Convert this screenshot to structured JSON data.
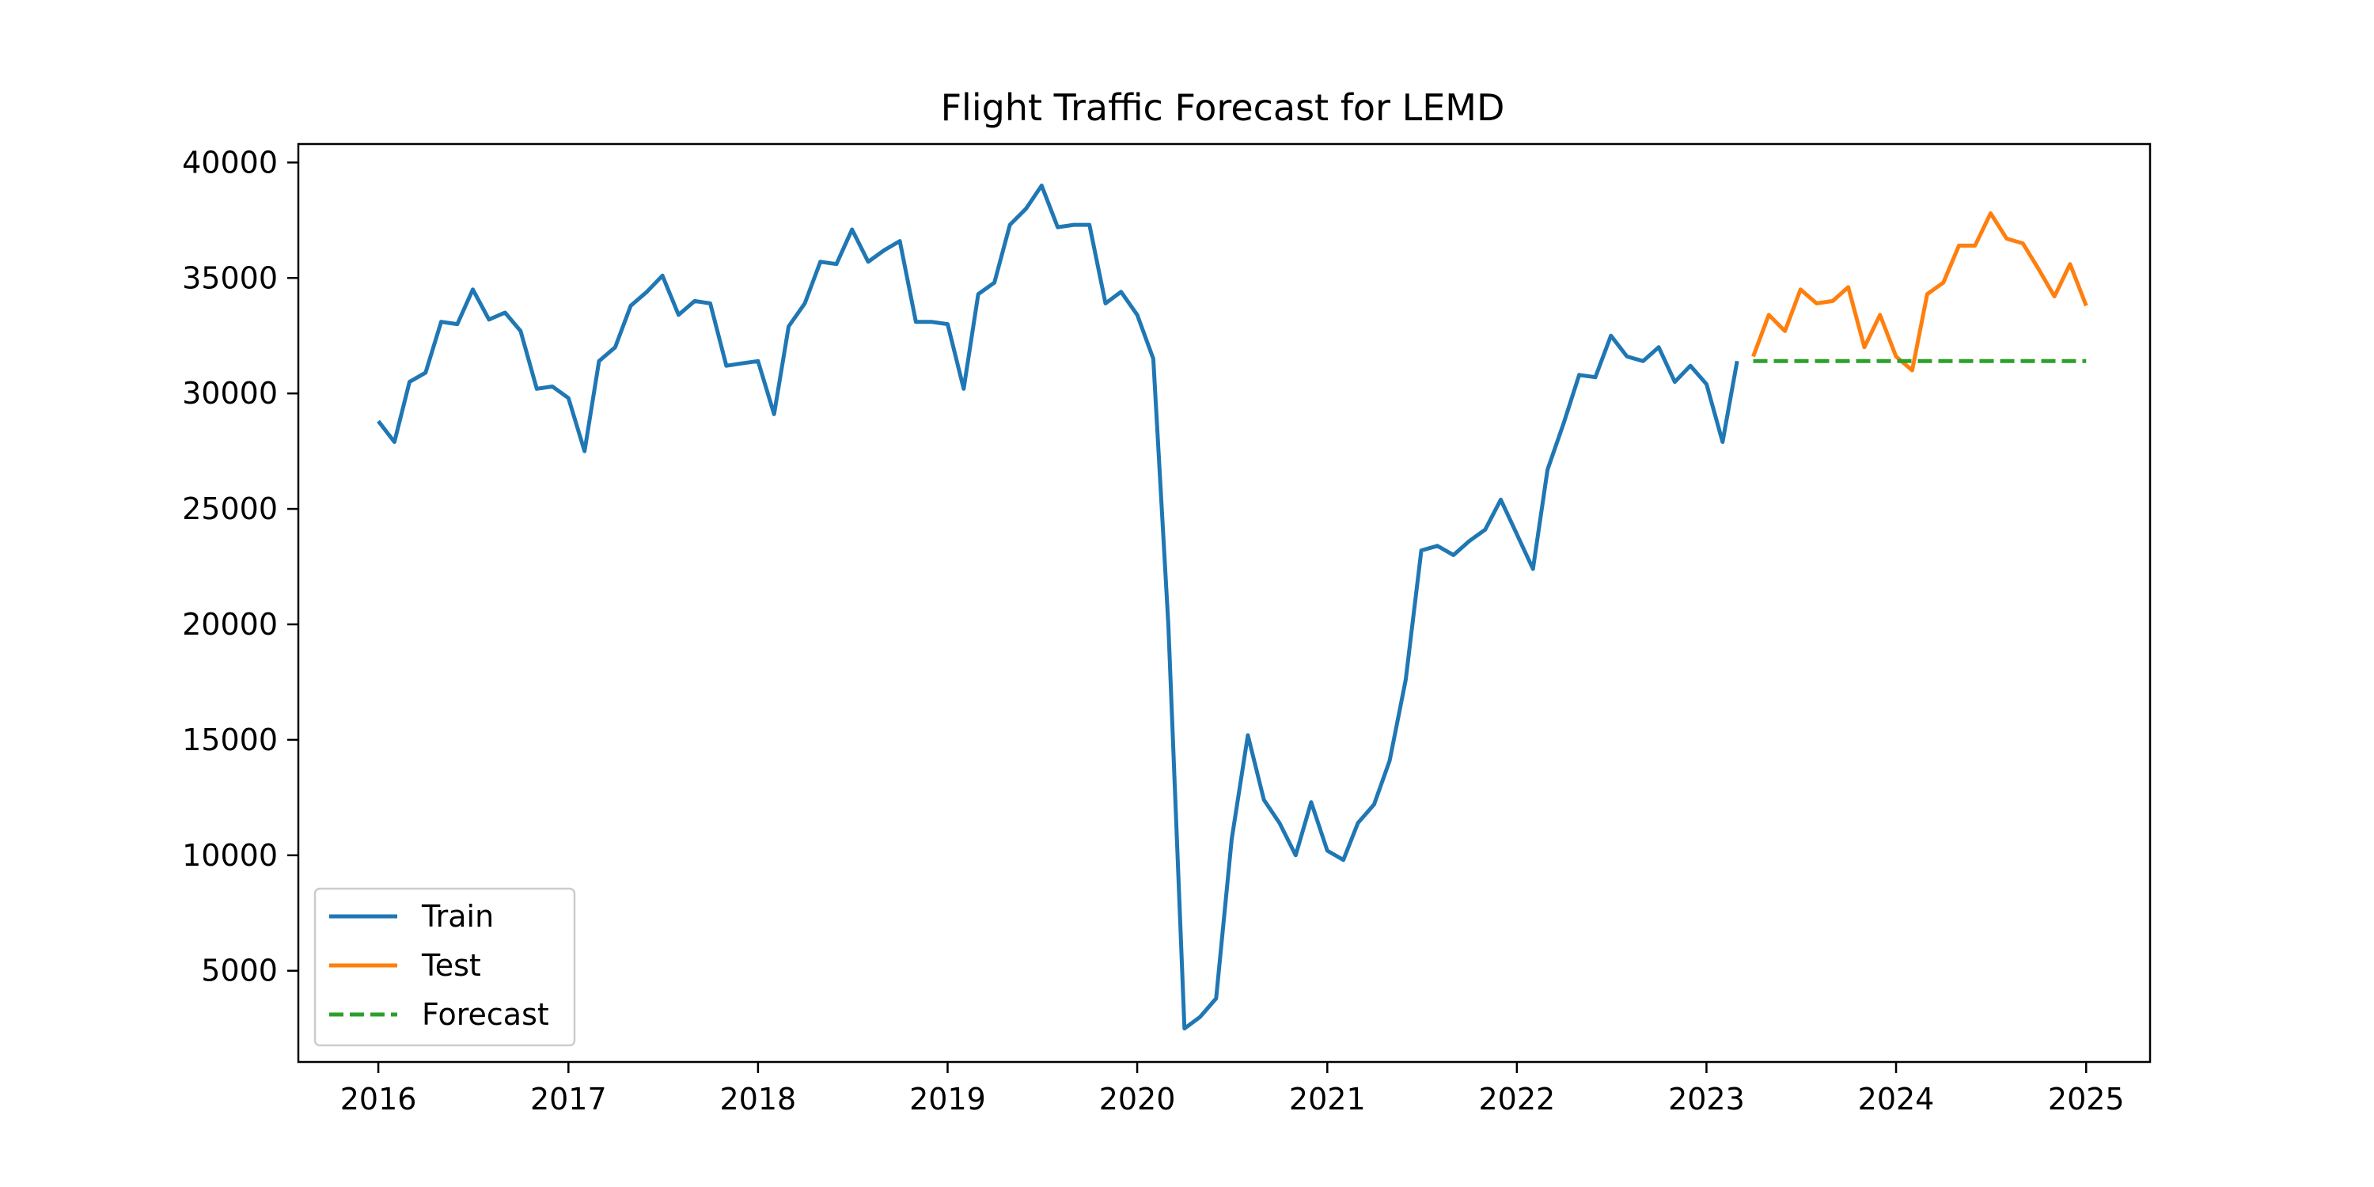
{
  "chart_data": {
    "type": "line",
    "title": "Flight Traffic Forecast for LEMD",
    "xlabel": "",
    "ylabel": "",
    "x_axis_type": "date",
    "xlim": [
      "2015-07-31",
      "2025-05-04"
    ],
    "ylim": [
      1050,
      40800
    ],
    "x_ticks": [
      "2016-01-01",
      "2017-01-01",
      "2018-01-01",
      "2019-01-01",
      "2020-01-01",
      "2021-01-01",
      "2022-01-01",
      "2023-01-01",
      "2024-01-01",
      "2025-01-01"
    ],
    "x_tick_labels": [
      "2016",
      "2017",
      "2018",
      "2019",
      "2020",
      "2021",
      "2022",
      "2023",
      "2024",
      "2025"
    ],
    "y_ticks": [
      5000,
      10000,
      15000,
      20000,
      25000,
      30000,
      35000,
      40000
    ],
    "y_tick_labels": [
      "5000",
      "10000",
      "15000",
      "20000",
      "25000",
      "30000",
      "35000",
      "40000"
    ],
    "grid": false,
    "legend_position": "lower-left",
    "series": [
      {
        "name": "Train",
        "color": "#1f77b4",
        "style": "solid",
        "points": [
          [
            "2016-01-01",
            28800
          ],
          [
            "2016-02-01",
            27900
          ],
          [
            "2016-03-01",
            30500
          ],
          [
            "2016-04-01",
            30900
          ],
          [
            "2016-05-01",
            33100
          ],
          [
            "2016-06-01",
            33000
          ],
          [
            "2016-07-01",
            34500
          ],
          [
            "2016-08-01",
            33200
          ],
          [
            "2016-09-01",
            33500
          ],
          [
            "2016-10-01",
            32700
          ],
          [
            "2016-11-01",
            30200
          ],
          [
            "2016-12-01",
            30300
          ],
          [
            "2017-01-01",
            29800
          ],
          [
            "2017-02-01",
            27500
          ],
          [
            "2017-03-01",
            31400
          ],
          [
            "2017-04-01",
            32000
          ],
          [
            "2017-05-01",
            33800
          ],
          [
            "2017-06-01",
            34400
          ],
          [
            "2017-07-01",
            35100
          ],
          [
            "2017-08-01",
            33400
          ],
          [
            "2017-09-01",
            34000
          ],
          [
            "2017-10-01",
            33900
          ],
          [
            "2017-11-01",
            31200
          ],
          [
            "2017-12-01",
            31300
          ],
          [
            "2018-01-01",
            31400
          ],
          [
            "2018-02-01",
            29100
          ],
          [
            "2018-03-01",
            32900
          ],
          [
            "2018-04-01",
            33900
          ],
          [
            "2018-05-01",
            35700
          ],
          [
            "2018-06-01",
            35600
          ],
          [
            "2018-07-01",
            37100
          ],
          [
            "2018-08-01",
            35700
          ],
          [
            "2018-09-01",
            36200
          ],
          [
            "2018-10-01",
            36600
          ],
          [
            "2018-11-01",
            33100
          ],
          [
            "2018-12-01",
            33100
          ],
          [
            "2019-01-01",
            33000
          ],
          [
            "2019-02-01",
            30200
          ],
          [
            "2019-03-01",
            34300
          ],
          [
            "2019-04-01",
            34800
          ],
          [
            "2019-05-01",
            37300
          ],
          [
            "2019-06-01",
            38000
          ],
          [
            "2019-07-01",
            39000
          ],
          [
            "2019-08-01",
            37200
          ],
          [
            "2019-09-01",
            37300
          ],
          [
            "2019-10-01",
            37300
          ],
          [
            "2019-11-01",
            33900
          ],
          [
            "2019-12-01",
            34400
          ],
          [
            "2020-01-01",
            33400
          ],
          [
            "2020-02-01",
            31500
          ],
          [
            "2020-03-01",
            20000
          ],
          [
            "2020-04-01",
            2500
          ],
          [
            "2020-05-01",
            3000
          ],
          [
            "2020-06-01",
            3800
          ],
          [
            "2020-07-01",
            10700
          ],
          [
            "2020-08-01",
            15200
          ],
          [
            "2020-09-01",
            12400
          ],
          [
            "2020-10-01",
            11400
          ],
          [
            "2020-11-01",
            10000
          ],
          [
            "2020-12-01",
            12300
          ],
          [
            "2021-01-01",
            10200
          ],
          [
            "2021-02-01",
            9800
          ],
          [
            "2021-03-01",
            11400
          ],
          [
            "2021-04-01",
            12200
          ],
          [
            "2021-05-01",
            14100
          ],
          [
            "2021-06-01",
            17600
          ],
          [
            "2021-07-01",
            23200
          ],
          [
            "2021-08-01",
            23400
          ],
          [
            "2021-09-01",
            23000
          ],
          [
            "2021-10-01",
            23600
          ],
          [
            "2021-11-01",
            24100
          ],
          [
            "2021-12-01",
            25400
          ],
          [
            "2022-01-01",
            23900
          ],
          [
            "2022-02-01",
            22400
          ],
          [
            "2022-03-01",
            26700
          ],
          [
            "2022-04-01",
            28700
          ],
          [
            "2022-05-01",
            30800
          ],
          [
            "2022-06-01",
            30700
          ],
          [
            "2022-07-01",
            32500
          ],
          [
            "2022-08-01",
            31600
          ],
          [
            "2022-09-01",
            31400
          ],
          [
            "2022-10-01",
            32000
          ],
          [
            "2022-11-01",
            30500
          ],
          [
            "2022-12-01",
            31200
          ],
          [
            "2023-01-01",
            30400
          ],
          [
            "2023-02-01",
            27900
          ],
          [
            "2023-03-01",
            31400
          ]
        ]
      },
      {
        "name": "Test",
        "color": "#ff7f0e",
        "style": "solid",
        "points": [
          [
            "2023-04-01",
            31600
          ],
          [
            "2023-05-01",
            33400
          ],
          [
            "2023-06-01",
            32700
          ],
          [
            "2023-07-01",
            34500
          ],
          [
            "2023-08-01",
            33900
          ],
          [
            "2023-09-01",
            34000
          ],
          [
            "2023-10-01",
            34600
          ],
          [
            "2023-11-01",
            32000
          ],
          [
            "2023-12-01",
            33400
          ],
          [
            "2024-01-01",
            31600
          ],
          [
            "2024-02-01",
            31000
          ],
          [
            "2024-03-01",
            34300
          ],
          [
            "2024-04-01",
            34800
          ],
          [
            "2024-05-01",
            36400
          ],
          [
            "2024-06-01",
            36400
          ],
          [
            "2024-07-01",
            37800
          ],
          [
            "2024-08-01",
            36700
          ],
          [
            "2024-09-01",
            36500
          ],
          [
            "2024-10-01",
            35400
          ],
          [
            "2024-11-01",
            34200
          ],
          [
            "2024-12-01",
            35600
          ],
          [
            "2025-01-01",
            33800
          ]
        ]
      },
      {
        "name": "Forecast",
        "color": "#2ca02c",
        "style": "dashed",
        "points": [
          [
            "2023-04-01",
            31400
          ],
          [
            "2025-01-01",
            31400
          ]
        ]
      }
    ]
  }
}
